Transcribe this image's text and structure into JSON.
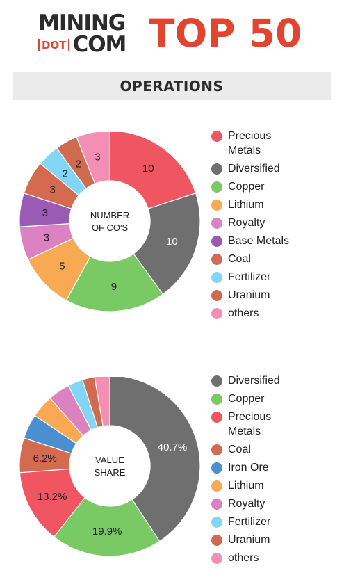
{
  "header": {
    "logo_line1": "MINING",
    "logo_dot": "DOT",
    "logo_line2": "COM",
    "title": "TOP 50",
    "brand_color": "#e2452d"
  },
  "section": {
    "title": "OPERATIONS"
  },
  "chart_data": [
    {
      "type": "pie",
      "center_label": [
        "NUMBER",
        "OF CO'S"
      ],
      "labels_inside": true,
      "slices": [
        {
          "label": "Precious Metals",
          "value": 10,
          "color": "#ef5661"
        },
        {
          "label": "Diversified",
          "value": 10,
          "color": "#6f6f6f"
        },
        {
          "label": "Copper",
          "value": 9,
          "color": "#79c965"
        },
        {
          "label": "Lithium",
          "value": 5,
          "color": "#f7a954"
        },
        {
          "label": "Royalty",
          "value": 3,
          "color": "#dc82c2"
        },
        {
          "label": "Base Metals",
          "value": 3,
          "color": "#9a5bb5"
        },
        {
          "label": "Coal",
          "value": 3,
          "color": "#d46a4f"
        },
        {
          "label": "Fertilizer",
          "value": 2,
          "color": "#82d6f5"
        },
        {
          "label": "Uranium",
          "value": 2,
          "color": "#d06b50"
        },
        {
          "label": "others",
          "value": 3,
          "color": "#f48fb4"
        }
      ]
    },
    {
      "type": "pie",
      "center_label": [
        "VALUE",
        "SHARE"
      ],
      "value_format": "percent",
      "slices": [
        {
          "label": "Diversified",
          "value": 40.7,
          "display": "40.7%",
          "color": "#6f6f6f"
        },
        {
          "label": "Copper",
          "value": 19.9,
          "display": "19.9%",
          "color": "#79c965"
        },
        {
          "label": "Precious Metals",
          "value": 13.2,
          "display": "13.2%",
          "color": "#ef5661"
        },
        {
          "label": "Coal",
          "value": 6.2,
          "display": "6.2%",
          "color": "#d46a4f"
        },
        {
          "label": "Iron Ore",
          "value": 4.4,
          "display": "",
          "color": "#4a90d0"
        },
        {
          "label": "Lithium",
          "value": 4.1,
          "display": "",
          "color": "#f7a954"
        },
        {
          "label": "Royalty",
          "value": 3.9,
          "display": "",
          "color": "#dc82c2"
        },
        {
          "label": "Fertilizer",
          "value": 2.7,
          "display": "",
          "color": "#82d6f5"
        },
        {
          "label": "Uranium",
          "value": 2.2,
          "display": "",
          "color": "#d06b50"
        },
        {
          "label": "others",
          "value": 2.7,
          "display": "",
          "color": "#f48fb4"
        }
      ]
    }
  ]
}
